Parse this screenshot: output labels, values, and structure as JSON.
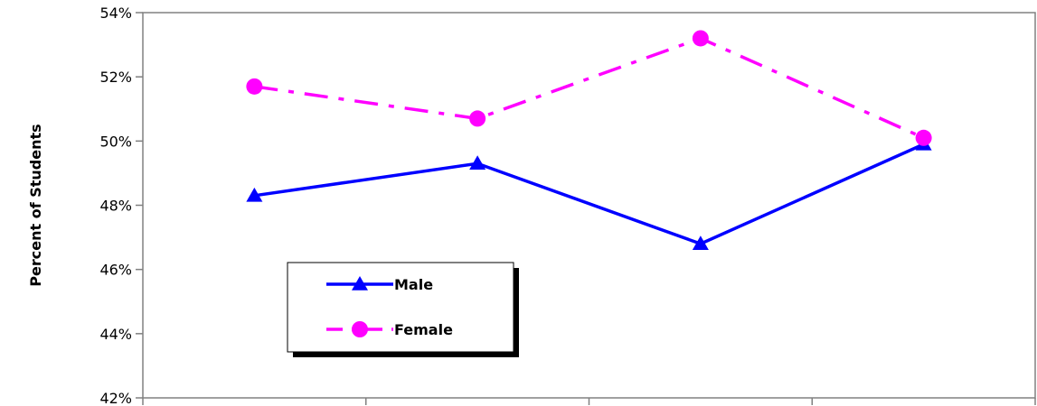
{
  "chart_data": {
    "type": "line",
    "title": "",
    "xlabel": "",
    "ylabel": "Percent of Students",
    "ylim": [
      0.42,
      0.54
    ],
    "yticks": [
      0.42,
      0.44,
      0.46,
      0.48,
      0.5,
      0.52,
      0.54
    ],
    "ytick_labels": [
      "42%",
      "44%",
      "46%",
      "48%",
      "50%",
      "52%",
      "54%"
    ],
    "categories": [
      "",
      "",
      "",
      ""
    ],
    "grid": false,
    "legend_position": "bottom-left",
    "series": [
      {
        "name": "Male",
        "values": [
          0.483,
          0.493,
          0.468,
          0.499
        ],
        "color": "#0000ff",
        "line_style": "solid",
        "marker": "triangle"
      },
      {
        "name": "Female",
        "values": [
          0.517,
          0.507,
          0.532,
          0.501
        ],
        "color": "#ff00ff",
        "line_style": "dash-dot",
        "marker": "circle"
      }
    ]
  }
}
